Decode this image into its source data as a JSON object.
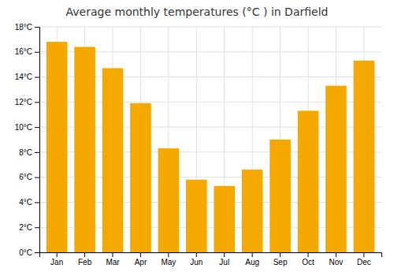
{
  "chart_data": {
    "type": "bar",
    "title": "Average monthly temperatures (°C ) in Darfield",
    "categories": [
      "Jan",
      "Feb",
      "Mar",
      "Apr",
      "May",
      "Jun",
      "Jul",
      "Aug",
      "Sep",
      "Oct",
      "Nov",
      "Dec"
    ],
    "values": [
      16.8,
      16.4,
      14.7,
      11.9,
      8.3,
      5.8,
      5.3,
      6.6,
      9.0,
      11.3,
      13.3,
      15.3
    ],
    "color": "#F5A800",
    "ylim": [
      0,
      18
    ],
    "yticks": [
      {
        "value": 0,
        "label": "0°C"
      },
      {
        "value": 2,
        "label": "2°C"
      },
      {
        "value": 4,
        "label": "4°C"
      },
      {
        "value": 6,
        "label": "6°C"
      },
      {
        "value": 8,
        "label": "8°C"
      },
      {
        "value": 10,
        "label": "10°C"
      },
      {
        "value": 12,
        "label": "12°C"
      },
      {
        "value": 14,
        "label": "14°C"
      },
      {
        "value": 16,
        "label": "16°C"
      },
      {
        "value": 18,
        "label": "18°C"
      }
    ],
    "grid": true
  }
}
